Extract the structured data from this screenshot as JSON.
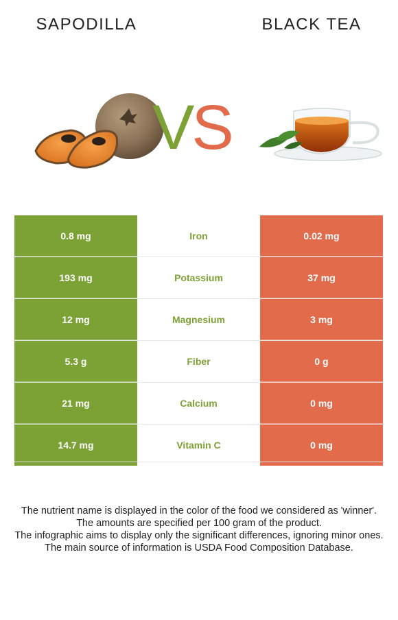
{
  "header": {
    "left_title": "SAPODILLA",
    "right_title": "BLACK TEA",
    "vs_v": "V",
    "vs_s": "S"
  },
  "colors": {
    "winner_left": "#7ca236",
    "winner_right": "#e26b4b"
  },
  "images": {
    "left": "sapodilla-fruit-image",
    "right": "black-tea-cup-image"
  },
  "rows": [
    {
      "left": "0.8 mg",
      "nutrient": "Iron",
      "right": "0.02 mg"
    },
    {
      "left": "193 mg",
      "nutrient": "Potassium",
      "right": "37 mg"
    },
    {
      "left": "12 mg",
      "nutrient": "Magnesium",
      "right": "3 mg"
    },
    {
      "left": "5.3 g",
      "nutrient": "Fiber",
      "right": "0 g"
    },
    {
      "left": "21 mg",
      "nutrient": "Calcium",
      "right": "0 mg"
    },
    {
      "left": "14.7 mg",
      "nutrient": "Vitamin C",
      "right": "0 mg"
    }
  ],
  "notes": [
    "The nutrient name is displayed in the color of the food we considered as 'winner'.",
    "The amounts are specified per 100 gram of the product.",
    "The infographic aims to display only the significant differences, ignoring minor ones.",
    "The main source of information is USDA Food Composition Database."
  ]
}
